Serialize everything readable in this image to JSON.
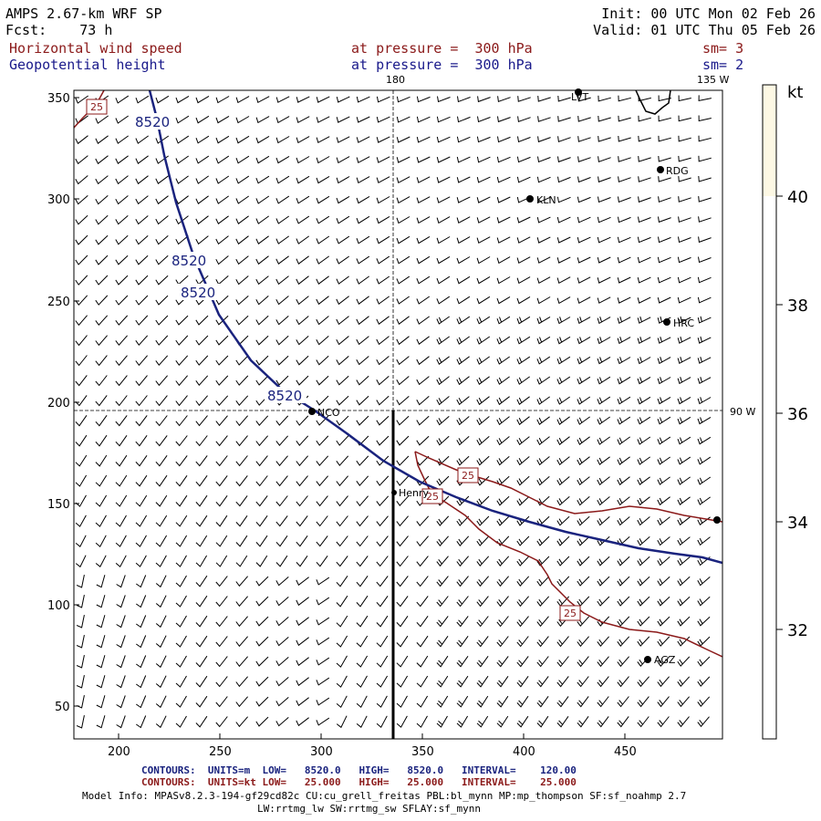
{
  "header": {
    "model": "AMPS 2.67-km WRF SP",
    "fcst_label": "Fcst:",
    "fcst_value": "73 h",
    "init": "Init: 00 UTC Mon 02 Feb 26",
    "valid": "Valid: 01 UTC Thu 05 Feb 26",
    "field1": "Horizontal wind speed",
    "field1_level": "at pressure =  300 hPa",
    "field1_sm": "sm= 3",
    "field2": "Geopotential height",
    "field2_level": "at pressure =  300 hPa",
    "field2_sm": "sm= 2"
  },
  "map": {
    "longitude_labels": [
      "180",
      "135 W",
      "90 W"
    ],
    "stations": [
      "LVT",
      "RDG",
      "KLN",
      "HRC",
      "NCO",
      "Henry",
      "AGZ"
    ],
    "contour_labels_height": [
      "8520",
      "8520",
      "8520",
      "8520"
    ],
    "contour_labels_speed": [
      "25",
      "25",
      "25",
      "25"
    ],
    "x_ticks": [
      "200",
      "250",
      "300",
      "350",
      "400",
      "450"
    ],
    "y_ticks": [
      "350",
      "300",
      "250",
      "200",
      "150",
      "100",
      "50"
    ]
  },
  "colorbar": {
    "unit": "kt",
    "ticks": [
      "40",
      "38",
      "36",
      "34",
      "32"
    ],
    "top_color": "#fdf8e4",
    "bg_color": "#ffffff"
  },
  "footer": {
    "line1_label": "CONTOURS:",
    "line1_units": "UNITS=m",
    "line1_low": "LOW=   8520.0",
    "line1_high": "HIGH=   8520.0",
    "line1_interval": "INTERVAL=    120.00",
    "line2_label": "CONTOURS:",
    "line2_units": "UNITS=kt",
    "line2_low": "LOW=   25.000",
    "line2_high": "HIGH=   25.000",
    "line2_interval": "INTERVAL=    25.000",
    "model_info": "Model Info: MPASv8.2.3-194-gf29cd82c CU:cu_grell_freitas PBL:bl_mynn MP:mp_thompson SF:sf_noahmp 2.7",
    "model_info2": "LW:rrtmg_lw SW:rrtmg_sw SFLAY:sf_mynn"
  },
  "colors": {
    "height_contour": "#1a237e",
    "speed_contour": "#8b1a1a",
    "barb": "#000000"
  }
}
